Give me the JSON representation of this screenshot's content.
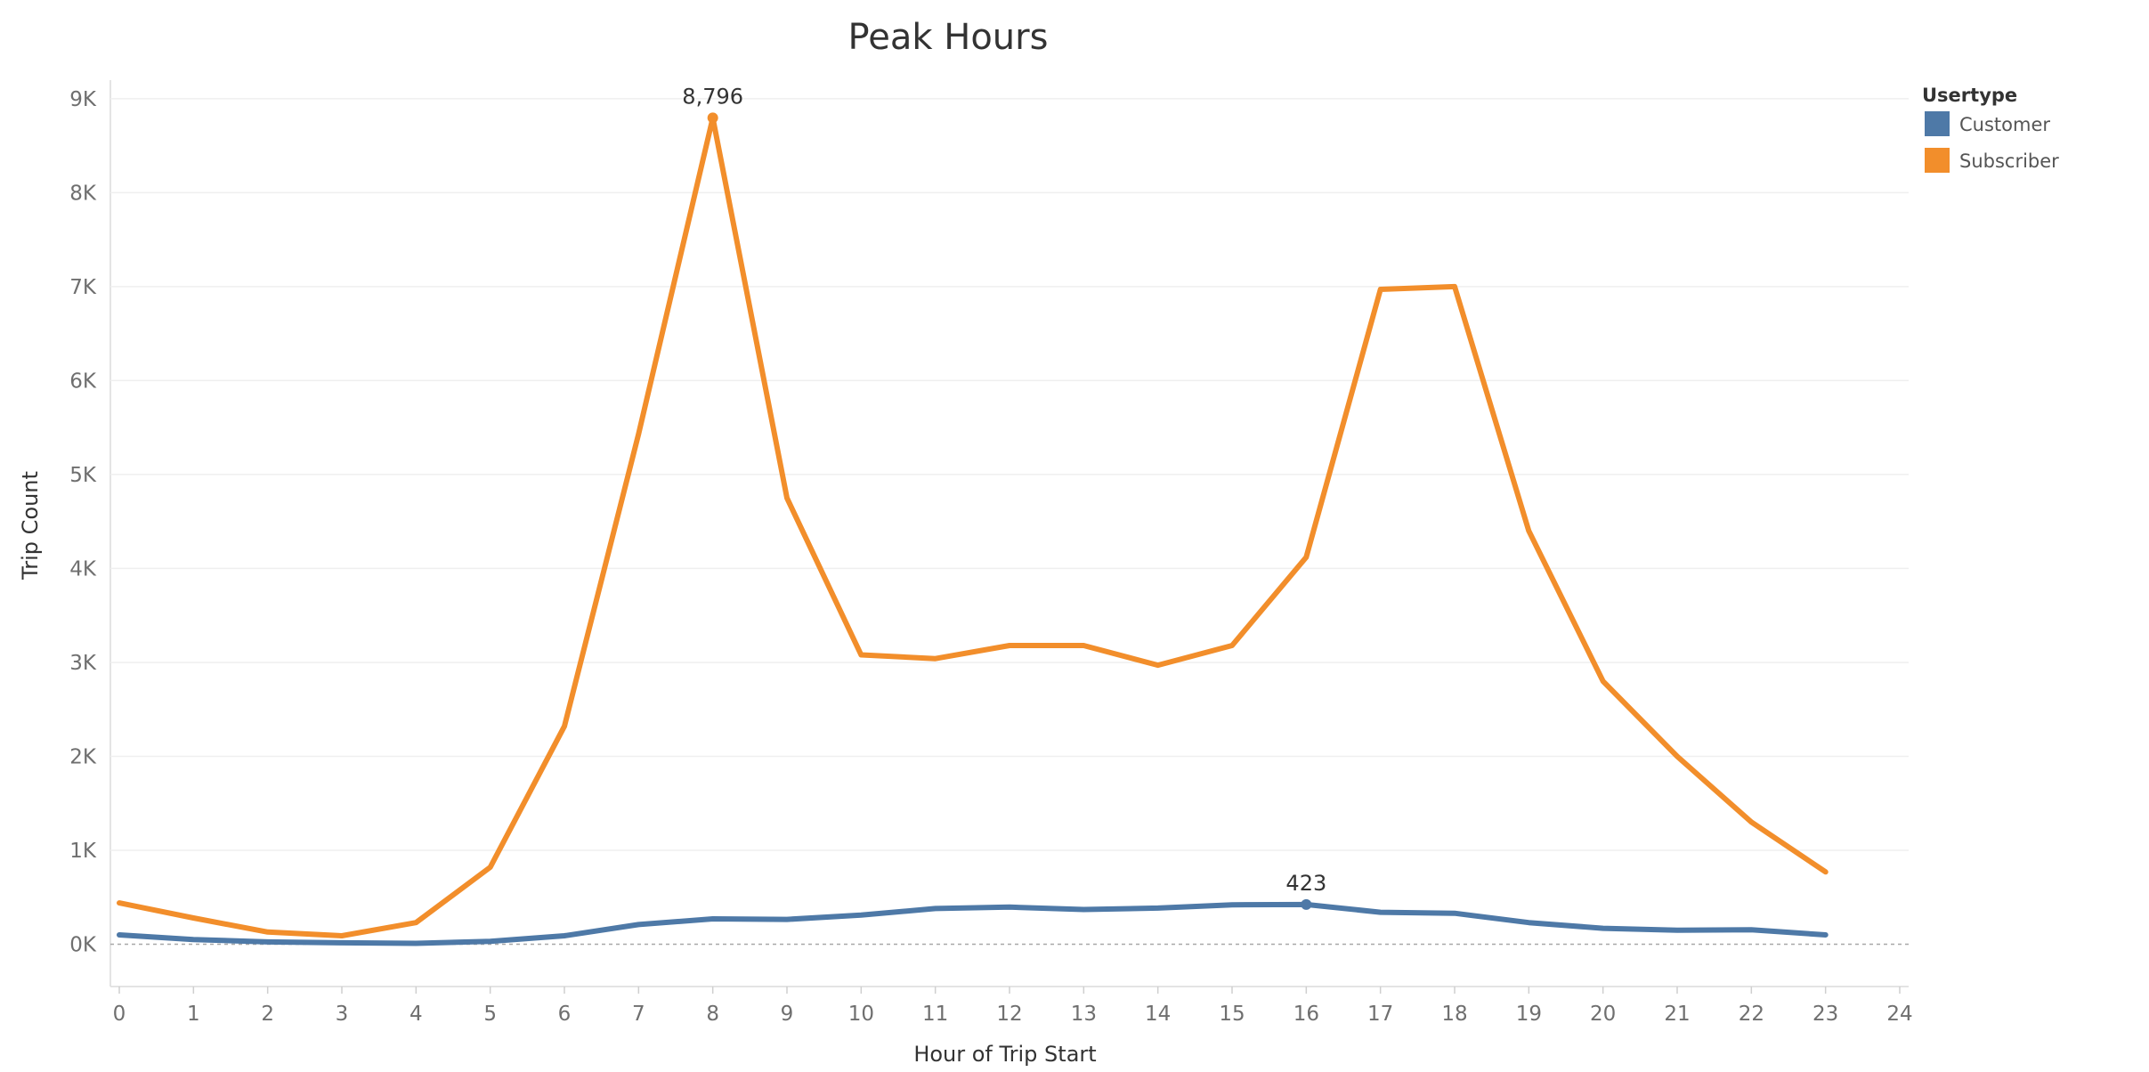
{
  "chart_data": {
    "type": "line",
    "title": "Peak Hours",
    "xlabel": "Hour of Trip Start",
    "ylabel": "Trip Count",
    "xlim": [
      0,
      24
    ],
    "ylim": [
      -450,
      9150
    ],
    "x_ticks": [
      0,
      1,
      2,
      3,
      4,
      5,
      6,
      7,
      8,
      9,
      10,
      11,
      12,
      13,
      14,
      15,
      16,
      17,
      18,
      19,
      20,
      21,
      22,
      23,
      24
    ],
    "y_ticks": [
      {
        "value": 0,
        "label": "0K"
      },
      {
        "value": 1000,
        "label": "1K"
      },
      {
        "value": 2000,
        "label": "2K"
      },
      {
        "value": 3000,
        "label": "3K"
      },
      {
        "value": 4000,
        "label": "4K"
      },
      {
        "value": 5000,
        "label": "5K"
      },
      {
        "value": 6000,
        "label": "6K"
      },
      {
        "value": 7000,
        "label": "7K"
      },
      {
        "value": 8000,
        "label": "8K"
      },
      {
        "value": 9000,
        "label": "9K"
      }
    ],
    "grid": true,
    "legend": {
      "title": "Usertype",
      "position": "top-right"
    },
    "x": [
      0,
      1,
      2,
      3,
      4,
      5,
      6,
      7,
      8,
      9,
      10,
      11,
      12,
      13,
      14,
      15,
      16,
      17,
      18,
      19,
      20,
      21,
      22,
      23
    ],
    "series": [
      {
        "name": "Customer",
        "color": "#4e79a7",
        "values": [
          100,
          50,
          25,
          15,
          10,
          30,
          90,
          210,
          270,
          265,
          310,
          380,
          395,
          370,
          385,
          420,
          423,
          340,
          330,
          230,
          170,
          150,
          155,
          100
        ],
        "annotation": {
          "x": 16,
          "value": 423,
          "label": "423"
        }
      },
      {
        "name": "Subscriber",
        "color": "#f28e2b",
        "values": [
          440,
          280,
          130,
          90,
          230,
          820,
          2320,
          5430,
          8796,
          4750,
          3080,
          3040,
          3180,
          3180,
          2970,
          3180,
          4120,
          6970,
          7000,
          4400,
          2800,
          2000,
          1300,
          770
        ],
        "annotation": {
          "x": 8,
          "value": 8796,
          "label": "8,796"
        }
      }
    ]
  }
}
